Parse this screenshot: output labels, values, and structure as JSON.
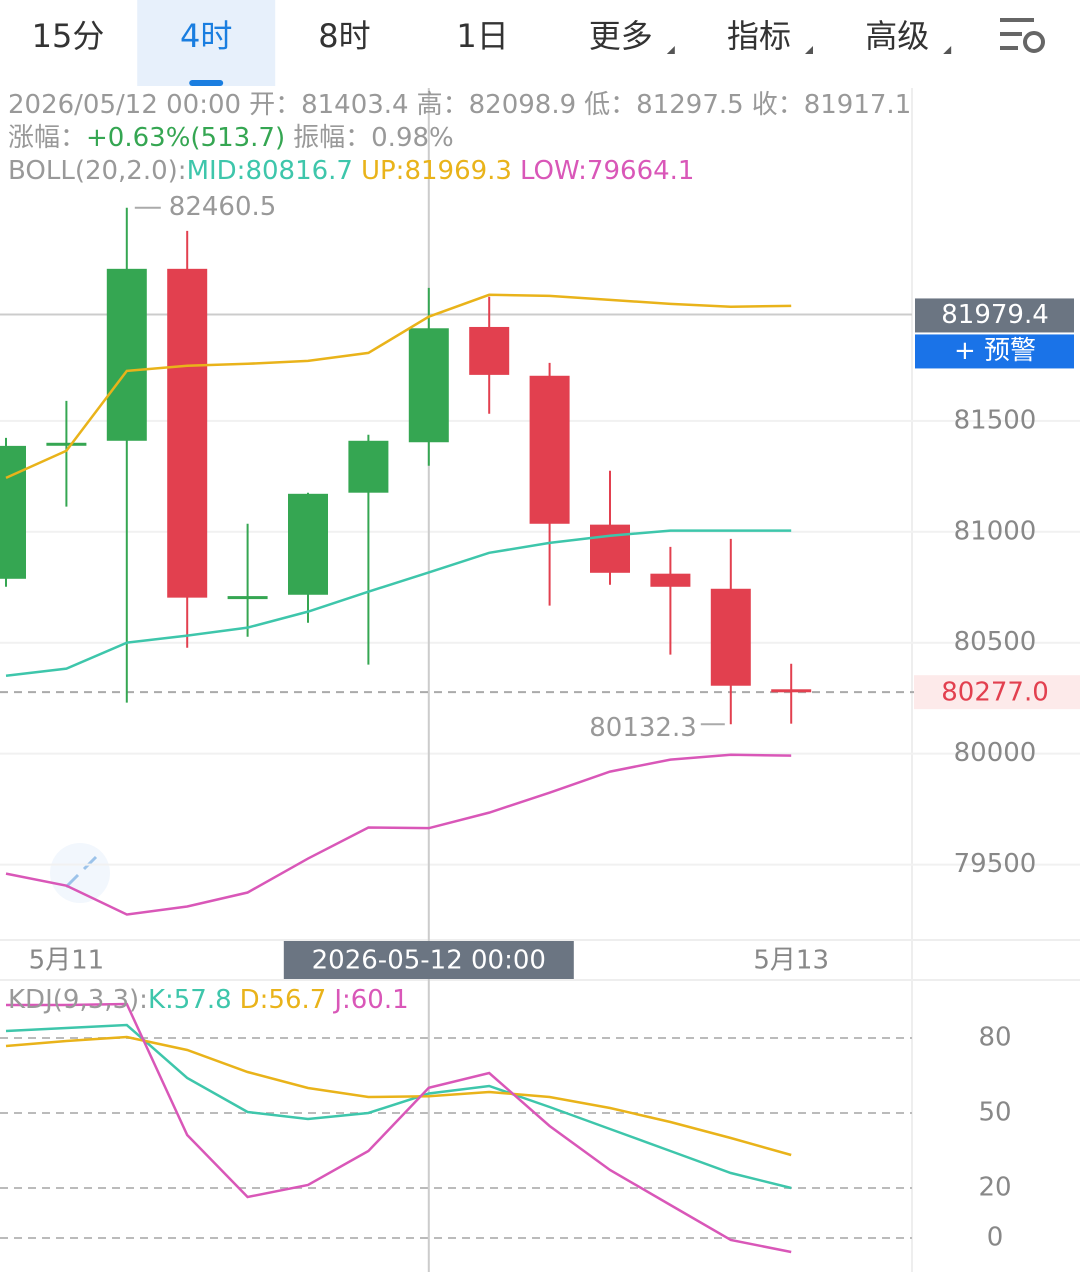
{
  "tabs": [
    {
      "label": "15分",
      "dropdown": false
    },
    {
      "label": "4时",
      "dropdown": false
    },
    {
      "label": "8时",
      "dropdown": false
    },
    {
      "label": "1日",
      "dropdown": false
    },
    {
      "label": "更多",
      "dropdown": true
    },
    {
      "label": "指标",
      "dropdown": true
    },
    {
      "label": "高级",
      "dropdown": true
    }
  ],
  "active_tab": 1,
  "info": {
    "date": "2026/05/12 00:00",
    "open_label": "开：",
    "high_label": "高：",
    "low_label": "低：",
    "close_label": "收：",
    "change_label": "涨幅：",
    "change": "+0.63%(513.7)",
    "amplitude_label": "振幅：",
    "amplitude": "0.98%"
  },
  "alert_button": "+ 预警",
  "chart_data": [
    {
      "type": "candlestick",
      "indicator": "BOLL(20,2.0):",
      "categories": [
        null,
        "5月11",
        null,
        null,
        null,
        null,
        null,
        "2026-05-12 00:00",
        null,
        null,
        null,
        null,
        null,
        "5月13"
      ],
      "crosshair_index": 7,
      "open": [
        80788,
        81395,
        81410,
        82185,
        80705,
        80716,
        81176,
        81403.4,
        81923,
        81703,
        81032,
        80811,
        80743,
        80290
      ],
      "high": [
        81423,
        81590,
        82460.5,
        82356,
        81036,
        81176,
        81437,
        82098.9,
        82059,
        81761,
        81275,
        80932,
        80968,
        80405
      ],
      "low": [
        80752,
        81113,
        80230,
        80477,
        80527,
        80590,
        80401,
        81297.5,
        81532,
        80667,
        80761,
        80446,
        80132.3,
        80135
      ],
      "close": [
        81387,
        81401,
        82185,
        80703,
        80710,
        81171,
        81410,
        81917.1,
        81707,
        81036,
        80815,
        80752,
        80306,
        80277
      ],
      "up_color": "#35a652",
      "down_color": "#e2404f",
      "max_index": 2,
      "min_index": 12,
      "last_price": {
        "value": 80277,
        "label": "80277.0"
      },
      "crosshair_price": 81979.4,
      "series": [
        {
          "name": "MID:80816.7",
          "color": "#3ec6ab",
          "values": [
            80351,
            80383,
            80500,
            80532,
            80568,
            80640,
            80730,
            80816.7,
            80905,
            80950,
            80982,
            81005,
            81005,
            81005
          ]
        },
        {
          "name": "UP:81969.3",
          "color": "#e9b31a",
          "values": [
            81243,
            81365,
            81725,
            81748,
            81757,
            81770,
            81806,
            81969.3,
            82068,
            82063,
            82045,
            82027,
            82014,
            82018
          ]
        },
        {
          "name": "LOW:79664.1",
          "color": "#d957b8",
          "values": [
            79459,
            79405,
            79275,
            79311,
            79374,
            79527,
            79667,
            79664.1,
            79734,
            79824,
            79919,
            79973,
            79995,
            79991
          ]
        }
      ],
      "ylim": [
        79160,
        83000
      ],
      "yticks": [
        81500,
        81000,
        80500,
        80000,
        79500
      ],
      "grid": true
    },
    {
      "type": "line",
      "indicator": "KDJ(9,3,3):",
      "series": [
        {
          "name": "K:57.8",
          "color": "#3ec6ab",
          "values": [
            82.8,
            84,
            85.2,
            64,
            50.4,
            47.6,
            50,
            57.8,
            60.8,
            52.4,
            43.6,
            34.8,
            26,
            20
          ]
        },
        {
          "name": "D:56.7",
          "color": "#e9b31a",
          "values": [
            76.8,
            78.8,
            80.4,
            75.2,
            66.4,
            60,
            56.4,
            56.7,
            58.4,
            56.4,
            52,
            46.4,
            40,
            33.2
          ]
        },
        {
          "name": "J:60.1",
          "color": "#d957b8",
          "values": [
            93.2,
            93.2,
            93.6,
            41.2,
            16.4,
            21.2,
            34.8,
            60.1,
            66,
            44.8,
            27.2,
            13.2,
            -0.8,
            -5.6
          ]
        }
      ],
      "ylim": [
        -13.6,
        103.2
      ],
      "yticks": [
        80,
        50,
        20,
        0
      ],
      "grid": true
    }
  ]
}
